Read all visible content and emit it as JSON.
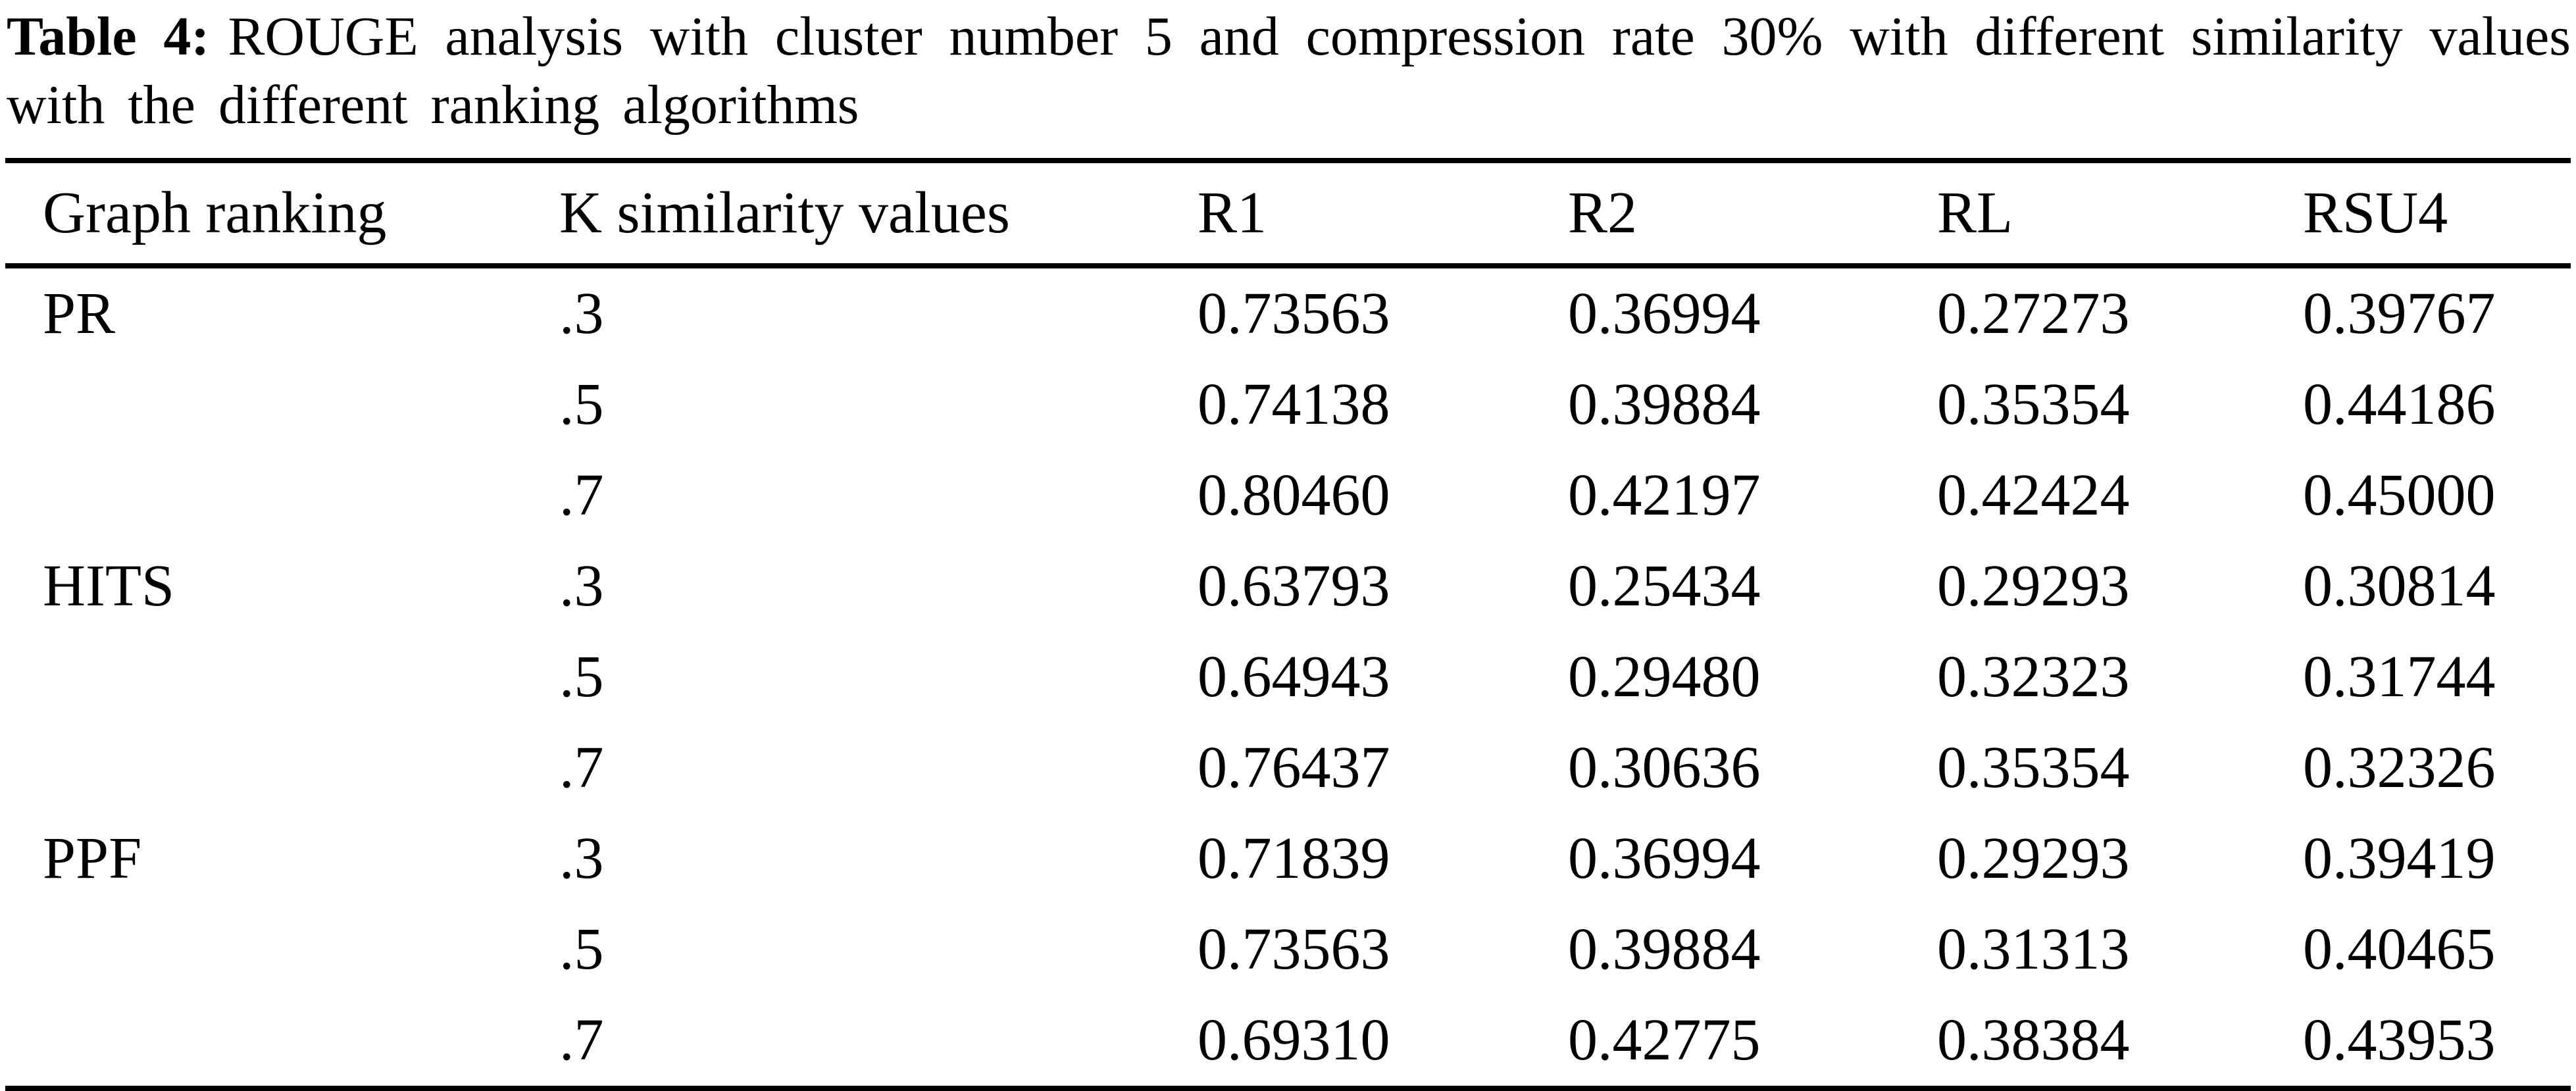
{
  "caption": {
    "label": "Table 4:",
    "line1": "ROUGE analysis with cluster number 5 and compression rate 30% with different similarity values",
    "line2": "with the different ranking algorithms"
  },
  "table": {
    "columns": [
      "Graph ranking",
      "K similarity values",
      "R1",
      "R2",
      "RL",
      "RSU4"
    ],
    "rows": [
      [
        "PR",
        ".3",
        "0.73563",
        "0.36994",
        "0.27273",
        "0.39767"
      ],
      [
        "",
        ".5",
        "0.74138",
        "0.39884",
        "0.35354",
        "0.44186"
      ],
      [
        "",
        ".7",
        "0.80460",
        "0.42197",
        "0.42424",
        "0.45000"
      ],
      [
        "HITS",
        ".3",
        "0.63793",
        "0.25434",
        "0.29293",
        "0.30814"
      ],
      [
        "",
        ".5",
        "0.64943",
        "0.29480",
        "0.32323",
        "0.31744"
      ],
      [
        "",
        ".7",
        "0.76437",
        "0.30636",
        "0.35354",
        "0.32326"
      ],
      [
        "PPF",
        ".3",
        "0.71839",
        "0.36994",
        "0.29293",
        "0.39419"
      ],
      [
        "",
        ".5",
        "0.73563",
        "0.39884",
        "0.31313",
        "0.40465"
      ],
      [
        "",
        ".7",
        "0.69310",
        "0.42775",
        "0.38384",
        "0.43953"
      ]
    ]
  },
  "colors": {
    "text": "#000000",
    "background": "#ffffff",
    "rule": "#000000"
  }
}
